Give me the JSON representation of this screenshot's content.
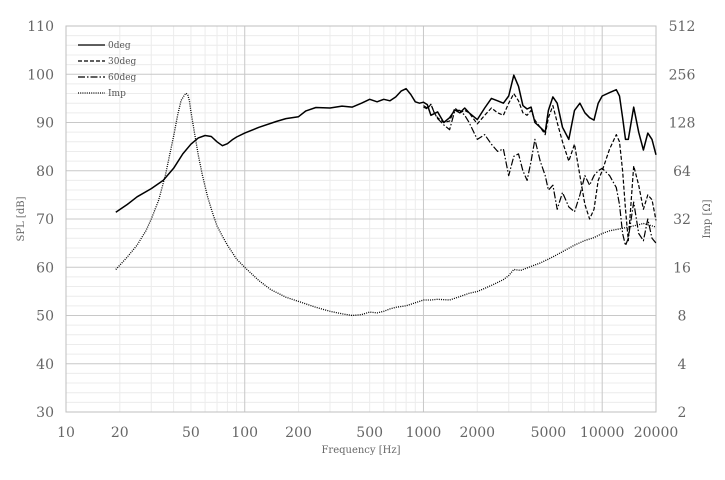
{
  "chart_data": {
    "type": "line",
    "title": "",
    "xlabel": "Frequency [Hz]",
    "ylabel": "SPL [dB]",
    "y2label": "Imp [Ω]",
    "xscale": "log",
    "xlim": [
      10,
      20000
    ],
    "ylim": [
      30,
      110
    ],
    "y2lim": [
      2,
      512
    ],
    "y2scale": "log2",
    "grid": true,
    "legend_position": "top-left",
    "x_ticks": [
      10,
      20,
      50,
      100,
      200,
      500,
      1000,
      2000,
      5000,
      10000,
      20000
    ],
    "y_ticks": [
      30,
      40,
      50,
      60,
      70,
      80,
      90,
      100,
      110
    ],
    "y2_ticks": [
      2,
      4,
      8,
      16,
      32,
      64,
      128,
      256,
      512
    ],
    "series": [
      {
        "name": "0deg",
        "axis": "left",
        "style": "solid",
        "x": [
          19,
          22,
          25,
          30,
          35,
          40,
          45,
          50,
          55,
          60,
          65,
          70,
          75,
          80,
          85,
          90,
          100,
          120,
          150,
          170,
          200,
          220,
          250,
          300,
          350,
          400,
          450,
          500,
          550,
          600,
          650,
          700,
          750,
          800,
          850,
          900,
          950,
          1000,
          1050,
          1100,
          1200,
          1300,
          1400,
          1500,
          1600,
          1700,
          1800,
          2000,
          2200,
          2400,
          2600,
          2800,
          3000,
          3200,
          3400,
          3600,
          3800,
          4000,
          4200,
          4500,
          4800,
          5000,
          5300,
          5600,
          6000,
          6500,
          7000,
          7500,
          8000,
          8500,
          9000,
          9500,
          10000,
          11000,
          12000,
          12500,
          13000,
          13500,
          14000,
          15000,
          16000,
          17000,
          18000,
          19000,
          20000
        ],
        "values": [
          71.4,
          73.0,
          74.6,
          76.3,
          78.0,
          80.5,
          83.5,
          85.5,
          86.8,
          87.3,
          87.1,
          86.0,
          85.2,
          85.6,
          86.4,
          87.0,
          87.8,
          89.0,
          90.2,
          90.8,
          91.2,
          92.4,
          93.1,
          93.0,
          93.4,
          93.2,
          94.0,
          94.8,
          94.3,
          94.8,
          94.5,
          95.3,
          96.5,
          97.0,
          95.8,
          94.3,
          94.0,
          94.2,
          93.7,
          91.5,
          92.2,
          90.0,
          91.0,
          92.6,
          92.0,
          93.0,
          92.0,
          90.6,
          93.0,
          95.0,
          94.5,
          94.0,
          95.5,
          99.8,
          97.5,
          93.5,
          92.8,
          93.2,
          90.0,
          89.0,
          88.0,
          92.5,
          95.3,
          94.0,
          89.0,
          86.5,
          92.5,
          94.0,
          92.0,
          91.0,
          90.5,
          94.0,
          95.5,
          96.2,
          96.8,
          95.5,
          91.0,
          86.5,
          86.5,
          93.2,
          88.0,
          84.3,
          87.8,
          86.5,
          83.3
        ]
      },
      {
        "name": "30deg",
        "axis": "left",
        "style": "dashed",
        "x": [
          1000,
          1050,
          1100,
          1150,
          1200,
          1300,
          1400,
          1500,
          1600,
          1700,
          1800,
          2000,
          2200,
          2400,
          2600,
          2800,
          3000,
          3200,
          3400,
          3600,
          3800,
          4000,
          4200,
          4500,
          4800,
          5000,
          5300,
          5600,
          6000,
          6500,
          7000,
          7500,
          8000,
          8500,
          9000,
          9500,
          10000,
          11000,
          12000,
          12500,
          13000,
          13500,
          14000,
          15000,
          16000,
          17000,
          18000,
          19000,
          20000
        ],
        "values": [
          93.2,
          92.8,
          93.8,
          92.0,
          91.0,
          90.0,
          90.3,
          93.0,
          92.0,
          92.5,
          92.0,
          89.7,
          91.5,
          93.0,
          92.0,
          91.5,
          94.0,
          96.0,
          94.5,
          92.0,
          91.5,
          92.5,
          90.5,
          89.0,
          87.5,
          91.0,
          93.5,
          90.0,
          86.0,
          82.0,
          85.5,
          79.0,
          73.0,
          70.0,
          72.0,
          78.0,
          80.0,
          84.5,
          87.5,
          86.0,
          80.0,
          72.0,
          65.5,
          81.0,
          77.0,
          72.0,
          75.0,
          74.0,
          69.7
        ]
      },
      {
        "name": "60deg",
        "axis": "left",
        "style": "dashdot",
        "x": [
          1000,
          1050,
          1100,
          1150,
          1200,
          1300,
          1400,
          1500,
          1600,
          1700,
          1800,
          2000,
          2200,
          2400,
          2600,
          2800,
          3000,
          3200,
          3400,
          3600,
          3800,
          4000,
          4200,
          4500,
          4800,
          5000,
          5300,
          5600,
          6000,
          6500,
          7000,
          7500,
          8000,
          8500,
          9000,
          9500,
          10000,
          11000,
          12000,
          12500,
          13000,
          13500,
          14000,
          15000,
          16000,
          17000,
          18000,
          19000,
          20000
        ],
        "values": [
          93.5,
          93.0,
          93.8,
          92.0,
          90.8,
          89.5,
          88.5,
          92.5,
          92.5,
          91.5,
          90.0,
          86.5,
          87.5,
          85.5,
          84.0,
          84.5,
          79.0,
          83.0,
          83.5,
          80.0,
          78.0,
          82.0,
          86.5,
          82.0,
          79.0,
          76.0,
          77.0,
          72.0,
          75.5,
          72.5,
          71.5,
          75.0,
          79.0,
          77.0,
          79.0,
          80.0,
          80.5,
          79.0,
          76.5,
          73.0,
          67.0,
          64.5,
          66.0,
          73.5,
          67.0,
          65.5,
          70.0,
          66.0,
          65.0
        ]
      },
      {
        "name": "Imp",
        "axis": "right",
        "style": "dotted",
        "x": [
          19,
          22,
          25,
          28,
          30,
          33,
          36,
          38,
          40,
          42,
          44,
          46,
          47,
          48,
          49,
          50,
          52,
          55,
          58,
          62,
          66,
          70,
          75,
          80,
          90,
          100,
          120,
          140,
          170,
          200,
          250,
          300,
          350,
          400,
          450,
          500,
          550,
          600,
          650,
          700,
          800,
          900,
          1000,
          1100,
          1200,
          1400,
          1600,
          1800,
          2000,
          2200,
          2500,
          2800,
          3000,
          3200,
          3500,
          4000,
          4500,
          5000,
          5500,
          6000,
          7000,
          8000,
          9000,
          10000,
          11000,
          12000,
          13000,
          14000,
          15000,
          16000,
          17000,
          18000,
          19000,
          20000
        ],
        "values": [
          15.5,
          18.5,
          22.0,
          27.0,
          32.0,
          42.0,
          60.0,
          80.0,
          105.0,
          140.0,
          175.0,
          190.0,
          195.0,
          190.0,
          175.0,
          150.0,
          115.0,
          80.0,
          60.0,
          44.0,
          35.0,
          29.0,
          25.0,
          22.0,
          18.0,
          16.0,
          13.2,
          11.6,
          10.4,
          9.8,
          9.0,
          8.5,
          8.2,
          8.0,
          8.1,
          8.4,
          8.3,
          8.5,
          8.8,
          9.0,
          9.2,
          9.6,
          10.0,
          10.0,
          10.1,
          10.0,
          10.5,
          11.0,
          11.3,
          11.8,
          12.6,
          13.4,
          14.2,
          15.5,
          15.3,
          16.2,
          17.0,
          18.0,
          19.0,
          20.0,
          22.0,
          23.5,
          24.5,
          26.0,
          27.0,
          27.5,
          28.0,
          28.5,
          29.0,
          29.5,
          30.0,
          29.5,
          29.0,
          28.5
        ]
      }
    ]
  }
}
